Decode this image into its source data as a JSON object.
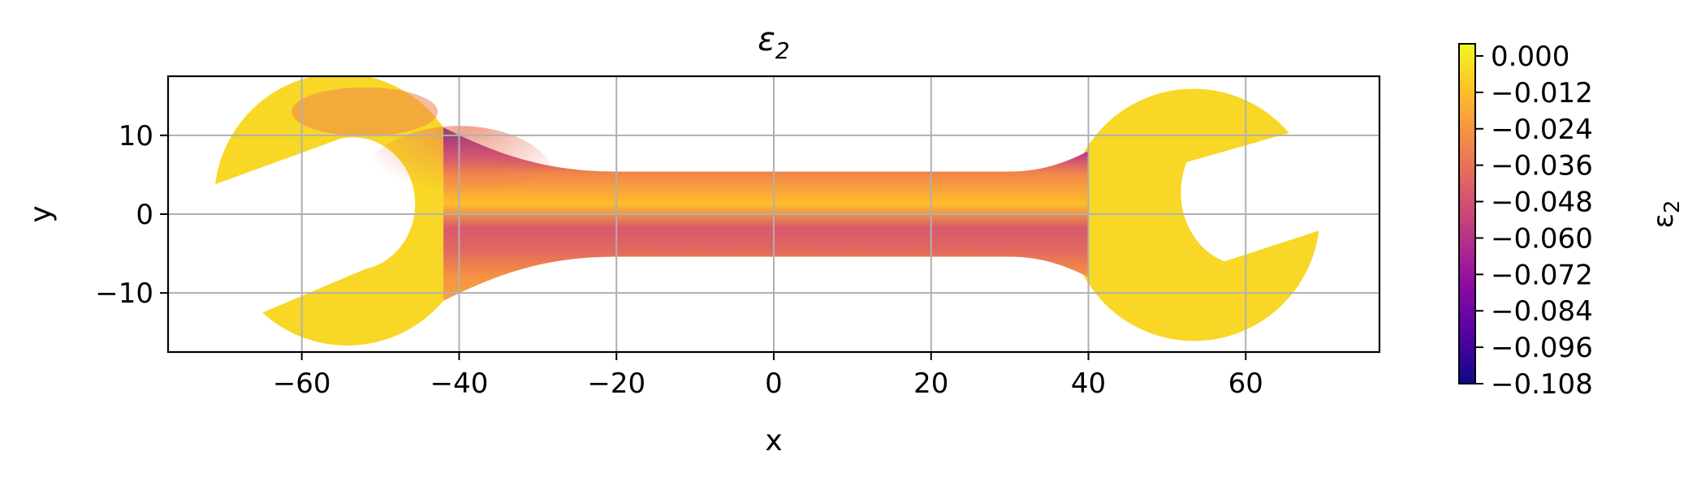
{
  "chart_data": {
    "type": "heatmap",
    "subtype": "filled-contour",
    "title_main": "ε",
    "title_sub": "2",
    "xlabel": "x",
    "ylabel": "y",
    "xlim": [
      -77,
      77
    ],
    "ylim": [
      -17.5,
      17.5
    ],
    "grid": true,
    "x_ticks": [
      -60,
      -40,
      -20,
      0,
      20,
      40,
      60
    ],
    "x_tick_labels": [
      "−60",
      "−40",
      "−20",
      "0",
      "20",
      "40",
      "60"
    ],
    "y_ticks": [
      10,
      0,
      -10
    ],
    "y_tick_labels": [
      "10",
      "0",
      "−10"
    ],
    "colormap": "plasma",
    "colormap_colors": [
      "#0d0887",
      "#5302a3",
      "#8b0aa5",
      "#b83289",
      "#db5c68",
      "#f48849",
      "#febd2a",
      "#f0f921"
    ],
    "colorbar": {
      "label_main": "ε",
      "label_sub": "2",
      "min": -0.108,
      "max": 0.004,
      "ticks": [
        0.0,
        -0.012,
        -0.024,
        -0.036,
        -0.048,
        -0.06,
        -0.072,
        -0.084,
        -0.096,
        -0.108
      ],
      "tick_labels": [
        "0.000",
        "−0.012",
        "−0.024",
        "−0.036",
        "−0.048",
        "−0.060",
        "−0.072",
        "−0.084",
        "−0.096",
        "−0.108"
      ]
    },
    "shape": "wrench",
    "field_description_values": {
      "handle_top_edge_min": -0.105,
      "handle_centre_band": -0.03,
      "handle_lower_band": -0.045,
      "jaws": -0.005
    }
  }
}
